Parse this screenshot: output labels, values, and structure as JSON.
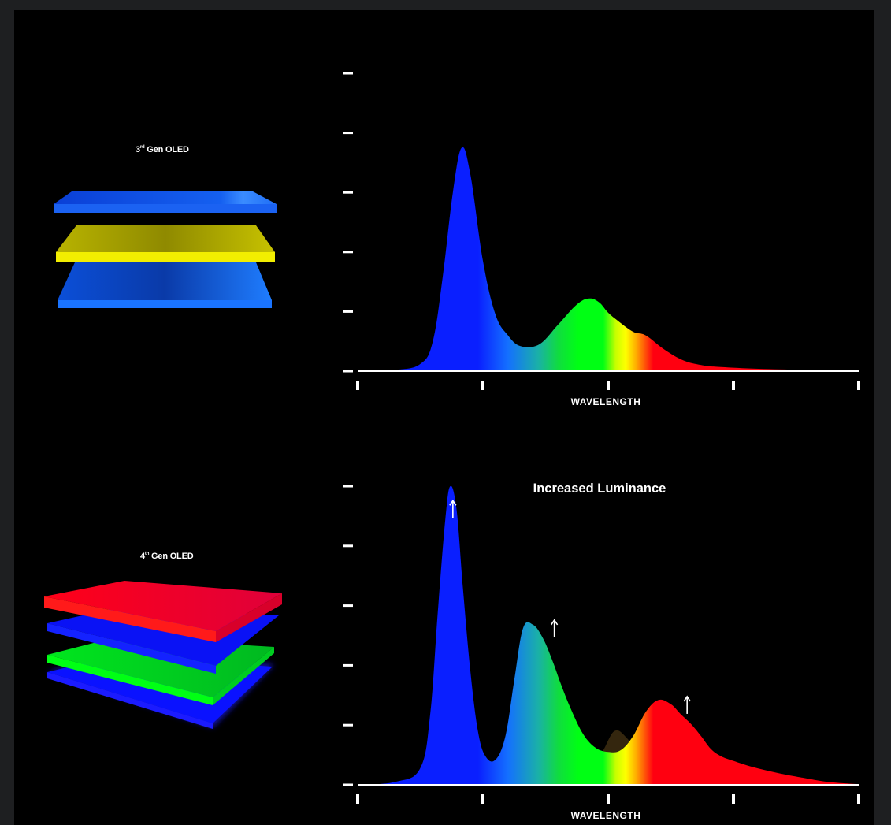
{
  "colors": {
    "background": "#000000",
    "frame": "#1e1f21",
    "blue": "#0a1fff",
    "green": "#00ff14",
    "yellow": "#ffff00",
    "red": "#ff0010",
    "axis": "#ffffff"
  },
  "gen3": {
    "label_base": "3",
    "label_sup": "rd",
    "label_rest": "Gen OLED",
    "layers": [
      "blue",
      "yellow",
      "blue"
    ]
  },
  "gen4": {
    "label_base": "4",
    "label_sup": "th",
    "label_rest": "Gen OLED",
    "layers": [
      "red",
      "blue",
      "green",
      "blue"
    ]
  },
  "chart_data": [
    {
      "type": "area",
      "id": "gen3-spectrum",
      "title": "",
      "xlabel": "WAVELENGTH",
      "ylabel": "",
      "xlim": [
        0,
        4
      ],
      "ylim": [
        0,
        5
      ],
      "x_ticks": [
        0,
        1,
        2,
        3,
        4
      ],
      "y_ticks": [
        0,
        1,
        2,
        3,
        4,
        5
      ],
      "grid": false,
      "series": [
        {
          "name": "3rd Gen OLED spectrum",
          "x": [
            0,
            0.3,
            0.5,
            0.6,
            0.68,
            0.76,
            0.83,
            0.9,
            1.0,
            1.1,
            1.2,
            1.3,
            1.45,
            1.6,
            1.75,
            1.85,
            1.93,
            2.0,
            2.08,
            2.2,
            2.3,
            2.45,
            2.6,
            2.75,
            2.9,
            3.2,
            3.6,
            4.0
          ],
          "values": [
            0,
            0.02,
            0.12,
            0.5,
            1.6,
            3.0,
            3.75,
            3.3,
            1.85,
            0.95,
            0.6,
            0.42,
            0.45,
            0.78,
            1.12,
            1.22,
            1.15,
            0.98,
            0.84,
            0.66,
            0.6,
            0.36,
            0.18,
            0.1,
            0.07,
            0.04,
            0.02,
            0.01
          ]
        }
      ],
      "annotations": []
    },
    {
      "type": "area",
      "id": "gen4-spectrum",
      "title": "Increased Luminance",
      "xlabel": "WAVELENGTH",
      "ylabel": "",
      "xlim": [
        0,
        4
      ],
      "ylim": [
        0,
        5
      ],
      "x_ticks": [
        0,
        1,
        2,
        3,
        4
      ],
      "y_ticks": [
        0,
        1,
        2,
        3,
        4,
        5
      ],
      "grid": false,
      "series": [
        {
          "name": "4th Gen OLED spectrum",
          "x": [
            0,
            0.3,
            0.5,
            0.58,
            0.64,
            0.7,
            0.74,
            0.79,
            0.84,
            0.9,
            0.96,
            1.02,
            1.1,
            1.18,
            1.25,
            1.32,
            1.4,
            1.48,
            1.56,
            1.62,
            1.7,
            1.8,
            1.9,
            2.0,
            2.1,
            2.2,
            2.3,
            2.4,
            2.5,
            2.58,
            2.66,
            2.74,
            2.82,
            2.9,
            3.0,
            3.15,
            3.35,
            3.55,
            3.75,
            4.0
          ],
          "values": [
            0,
            0.05,
            0.28,
            1.2,
            2.9,
            4.45,
            5.0,
            4.6,
            3.3,
            1.9,
            0.9,
            0.48,
            0.42,
            0.82,
            1.75,
            2.62,
            2.68,
            2.45,
            2.05,
            1.7,
            1.28,
            0.85,
            0.62,
            0.55,
            0.58,
            0.82,
            1.22,
            1.42,
            1.35,
            1.18,
            1.02,
            0.82,
            0.6,
            0.48,
            0.4,
            0.3,
            0.2,
            0.12,
            0.05,
            0.01
          ]
        }
      ],
      "annotations": [
        {
          "type": "up-arrow",
          "x": 0.76,
          "y": 4.6
        },
        {
          "type": "up-arrow",
          "x": 1.57,
          "y": 2.6
        },
        {
          "type": "up-arrow",
          "x": 2.63,
          "y": 1.32
        }
      ]
    }
  ]
}
